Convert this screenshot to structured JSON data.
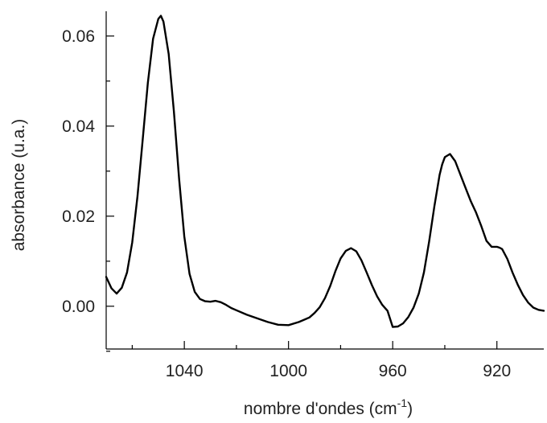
{
  "chart_data": {
    "type": "line",
    "title": "",
    "xlabel": "nombre d'ondes (cm",
    "xlabel_sup": "-1",
    "xlabel_close": ")",
    "ylabel": "absorbance (u.a.)",
    "x_reversed": true,
    "xlim": [
      1070,
      902
    ],
    "ylim": [
      -0.0095,
      0.0655
    ],
    "x_ticks": [
      {
        "value": 1040,
        "label": "1040"
      },
      {
        "value": 1000,
        "label": "1000"
      },
      {
        "value": 960,
        "label": "960"
      },
      {
        "value": 920,
        "label": "920"
      }
    ],
    "x_minor_ticks": [
      1060,
      1020,
      980,
      940
    ],
    "y_ticks": [
      {
        "value": 0.0,
        "label": "0.00"
      },
      {
        "value": 0.02,
        "label": "0.02"
      },
      {
        "value": 0.04,
        "label": "0.04"
      },
      {
        "value": 0.06,
        "label": "0.06"
      }
    ],
    "y_minor_ticks": [
      -0.01,
      0.01,
      0.03,
      0.05
    ],
    "grid": false,
    "line_color": "#000000",
    "series": [
      {
        "x": [
          1070,
          1068,
          1066,
          1064,
          1062,
          1060,
          1058,
          1056,
          1054,
          1052,
          1050,
          1049,
          1048,
          1046,
          1044,
          1042,
          1040,
          1038,
          1036,
          1034,
          1032,
          1030,
          1028,
          1026,
          1024,
          1022,
          1020,
          1016,
          1012,
          1008,
          1004,
          1000,
          996,
          992,
          990,
          988,
          986,
          984,
          982,
          980,
          978,
          976,
          974,
          972,
          970,
          968,
          966,
          964,
          962,
          960,
          958,
          956,
          954,
          952,
          950,
          948,
          946,
          944,
          942,
          941,
          940,
          938,
          936,
          934,
          932,
          930,
          928,
          926,
          924,
          922,
          920,
          919,
          918,
          916,
          914,
          912,
          910,
          908,
          906,
          904,
          902
        ],
        "y": [
          0.0065,
          0.004,
          0.0028,
          0.0041,
          0.0075,
          0.0142,
          0.0244,
          0.0368,
          0.0496,
          0.0594,
          0.0638,
          0.0645,
          0.0632,
          0.056,
          0.0432,
          0.0282,
          0.0155,
          0.0072,
          0.0032,
          0.0016,
          0.0011,
          0.001,
          0.0012,
          0.0009,
          0.0003,
          -0.0004,
          -0.0009,
          -0.0019,
          -0.0027,
          -0.0035,
          -0.0041,
          -0.0042,
          -0.0035,
          -0.0025,
          -0.0015,
          -0.0002,
          0.0018,
          0.0045,
          0.0078,
          0.0106,
          0.0123,
          0.0129,
          0.0122,
          0.0102,
          0.0075,
          0.0047,
          0.0022,
          0.0003,
          -0.001,
          -0.0046,
          -0.0045,
          -0.0038,
          -0.0024,
          -0.0003,
          0.0028,
          0.0075,
          0.0144,
          0.0222,
          0.0292,
          0.0315,
          0.0331,
          0.0338,
          0.0322,
          0.0292,
          0.0262,
          0.0233,
          0.0208,
          0.0178,
          0.0145,
          0.0132,
          0.0132,
          0.013,
          0.0127,
          0.0105,
          0.0075,
          0.0048,
          0.0025,
          0.0008,
          -0.0003,
          -0.0008,
          -0.001
        ]
      }
    ]
  }
}
